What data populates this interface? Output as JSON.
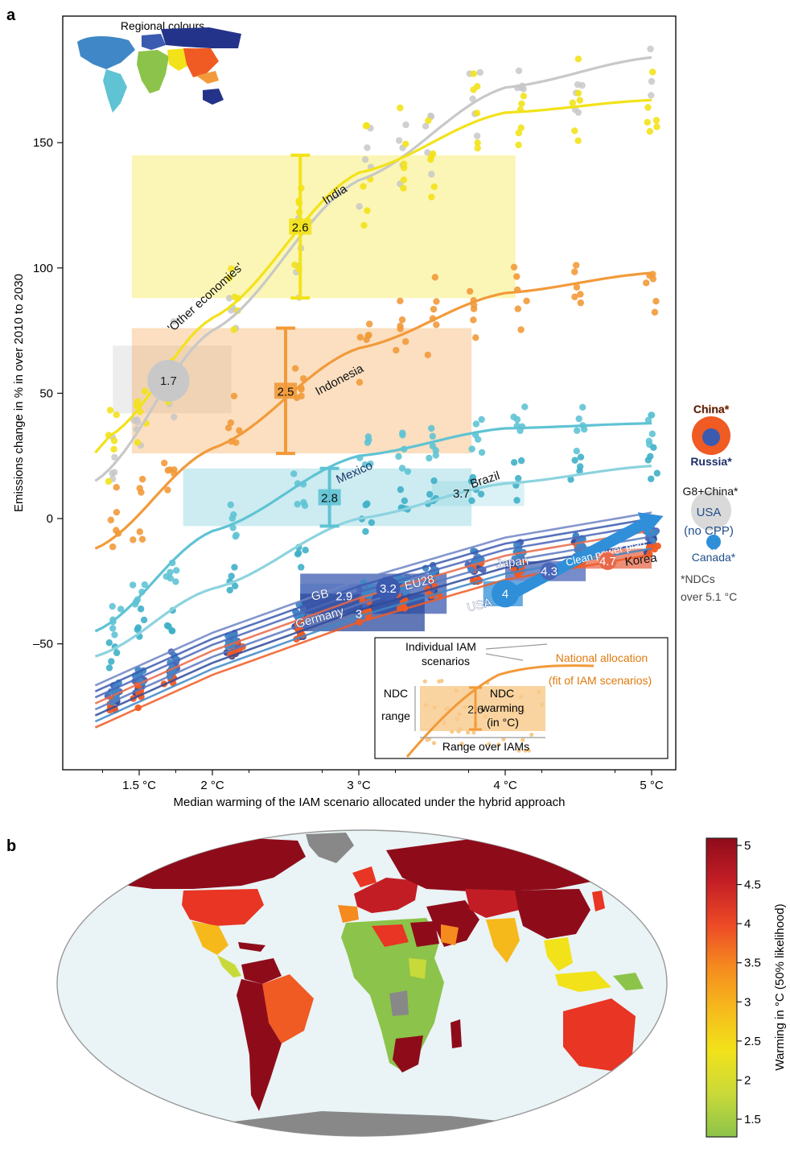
{
  "panel_a": {
    "letter": "a",
    "inset_label": "Regional colours",
    "xlabel": "Median warming of the IAM scenario allocated under the hybrid approach",
    "ylabel": "Emissions change in % in over 2010 to 2030",
    "x_ticks": [
      {
        "v": 1.5,
        "label": "1.5 °C"
      },
      {
        "v": 2,
        "label": "2 °C"
      },
      {
        "v": 3,
        "label": "3 °C"
      },
      {
        "v": 4,
        "label": "4 °C"
      },
      {
        "v": 5,
        "label": "5 °C"
      }
    ],
    "y_ticks": [
      {
        "v": 150,
        "label": "150"
      },
      {
        "v": 100,
        "label": "100"
      },
      {
        "v": 50,
        "label": "50"
      },
      {
        "v": 0,
        "label": "0"
      },
      {
        "v": -50,
        "label": "–50"
      }
    ],
    "side_labels": {
      "china": "China*",
      "russia": "Russia*",
      "g8": "G8+China*",
      "usa_nocpp_1": "USA",
      "usa_nocpp_2": "(no CPP)",
      "canada": "Canada*",
      "ndc_note_1": "*NDCs",
      "ndc_note_2": "over 5.1 °C"
    },
    "legend": {
      "individual_1": "Individual IAM",
      "individual_2": "scenarios",
      "national_1": "National allocation",
      "national_2": "(fit of IAM scenarios)",
      "ndc_range_1": "NDC",
      "ndc_range_2": "range",
      "ndc_warming_1": "NDC",
      "ndc_warming_2": "warming",
      "ndc_warming_3": "(in °C)",
      "example_value": "2.6",
      "range_over": "Range over IAMs"
    },
    "clean_power_plan": "Clean power plan"
  },
  "chart_data": {
    "type": "scatter",
    "xlabel": "Median warming of the IAM scenario allocated under the hybrid approach",
    "ylabel": "Emissions change in % in over 2010 to 2030",
    "xlim": [
      1.0,
      5.1
    ],
    "ylim": [
      -100,
      200
    ],
    "regions": [
      {
        "name": "India",
        "color": "#f2e21a",
        "ndc_warming": 2.6,
        "ndc_range": [
          88,
          145
        ],
        "iam_x_range": [
          1.45,
          4.07
        ],
        "fit": [
          [
            1.3,
            33
          ],
          [
            2,
            80
          ],
          [
            3,
            138
          ],
          [
            4,
            162
          ],
          [
            5,
            167
          ]
        ]
      },
      {
        "name": "'Other economies'",
        "color": "#c8c8c8",
        "ndc_warming": 1.7,
        "ndc_range": [
          42,
          69
        ],
        "iam_x_range": [
          1.32,
          2.13
        ],
        "fit": [
          [
            1.2,
            15
          ],
          [
            2,
            75
          ],
          [
            3,
            135
          ],
          [
            4,
            172
          ],
          [
            5,
            184
          ]
        ]
      },
      {
        "name": "Indonesia",
        "color": "#f29a3a",
        "ndc_warming": 2.5,
        "ndc_range": [
          26,
          76
        ],
        "iam_x_range": [
          1.45,
          3.77
        ],
        "fit": [
          [
            1.2,
            -12
          ],
          [
            2,
            28
          ],
          [
            3,
            68
          ],
          [
            4,
            90
          ],
          [
            5,
            98
          ]
        ]
      },
      {
        "name": "Mexico",
        "color": "#5fc3d4",
        "ndc_warming": 2.8,
        "ndc_range": [
          -3,
          20
        ],
        "iam_x_range": [
          1.8,
          3.77
        ],
        "fit": [
          [
            1.2,
            -45
          ],
          [
            2,
            -5
          ],
          [
            3,
            25
          ],
          [
            4,
            36
          ],
          [
            5,
            38
          ]
        ]
      },
      {
        "name": "Brazil",
        "color": "#8cd3df",
        "ndc_warming": 3.7,
        "ndc_range": [
          5,
          15
        ],
        "iam_x_range": [
          3.5,
          4.13
        ],
        "fit": [
          [
            1.2,
            -55
          ],
          [
            2,
            -28
          ],
          [
            3,
            0
          ],
          [
            4,
            14
          ],
          [
            5,
            21
          ]
        ]
      },
      {
        "name": "EU28",
        "color": "#3b5bb0",
        "ndc_warming": 3.2,
        "ndc_range": [
          -38,
          -22
        ],
        "iam_x_range": [
          2.6,
          3.6
        ]
      },
      {
        "name": "GB",
        "color": "#5a78c0",
        "ndc_warming": 2.9,
        "ndc_range": [
          -38,
          -26
        ],
        "iam_x_range": [
          2.6,
          3.35
        ]
      },
      {
        "name": "Germany",
        "color": "#2e4a9c",
        "ndc_warming": 3,
        "ndc_range": [
          -45,
          -30
        ],
        "iam_x_range": [
          2.6,
          3.45
        ]
      },
      {
        "name": "Japan",
        "color": "#4a66b8",
        "ndc_warming": 4.3,
        "ndc_range": [
          -25,
          -17
        ],
        "iam_x_range": [
          4.0,
          4.55
        ]
      },
      {
        "name": "Korea",
        "color": "#e8684a",
        "ndc_warming": 4.7,
        "ndc_range": [
          -20,
          -12
        ],
        "iam_x_range": [
          4.5,
          5.0
        ]
      },
      {
        "name": "USA",
        "color": "#2f8fd8",
        "ndc_warming": 4,
        "ndc_range": [
          -35,
          -25
        ],
        "iam_x_range": [
          3.85,
          4.12
        ]
      }
    ],
    "off_scale_ndcs": [
      "China*",
      "Russia*",
      "G8+China*",
      "USA (no CPP)",
      "Canada*"
    ]
  },
  "panel_b": {
    "letter": "b",
    "colorbar_label": "Warming in °C (50% likelihood)",
    "colorbar_ticks": [
      "5",
      "4.5",
      "4",
      "3.5",
      "3",
      "2.5",
      "2",
      "1.5"
    ],
    "colorbar_colors": [
      "#8e0c1a",
      "#c21d25",
      "#e83524",
      "#f05a23",
      "#f58a1f",
      "#f6b91c",
      "#f2e21a",
      "#c8d93a",
      "#8cc34a"
    ]
  }
}
